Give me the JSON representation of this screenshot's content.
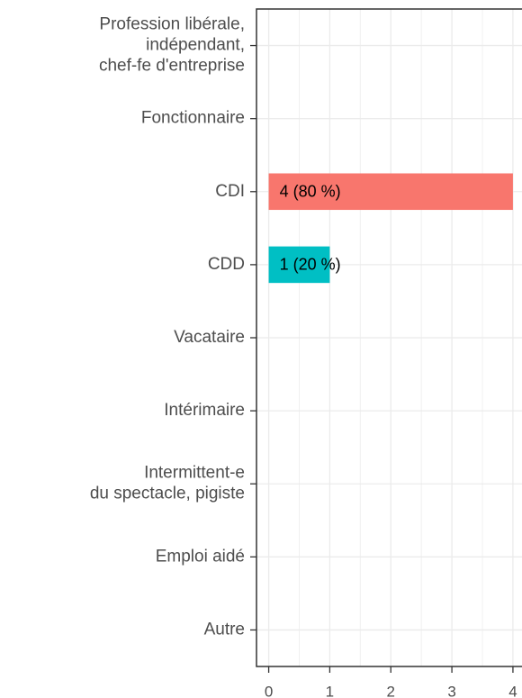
{
  "chart_data": {
    "type": "bar",
    "orientation": "horizontal",
    "categories": [
      "Profession libérale,\nindépendant,\nchef-fe d'entreprise",
      "Fonctionnaire",
      "CDI",
      "CDD",
      "Vacataire",
      "Intérimaire",
      "Intermittent-e\ndu spectacle, pigiste",
      "Emploi aidé",
      "Autre"
    ],
    "values": [
      0,
      0,
      4,
      1,
      0,
      0,
      0,
      0,
      0
    ],
    "value_labels": [
      null,
      null,
      "4 (80 %)",
      "1 (20 %)",
      null,
      null,
      null,
      null,
      null
    ],
    "colors": [
      null,
      null,
      "#F8766D",
      "#00BFC4",
      null,
      null,
      null,
      null,
      null
    ],
    "xlim": [
      -0.2,
      4.2
    ],
    "xticks": [
      0,
      1,
      2,
      3,
      4
    ],
    "xminorticks": [
      0.5,
      1.5,
      2.5,
      3.5
    ],
    "grid": true
  }
}
